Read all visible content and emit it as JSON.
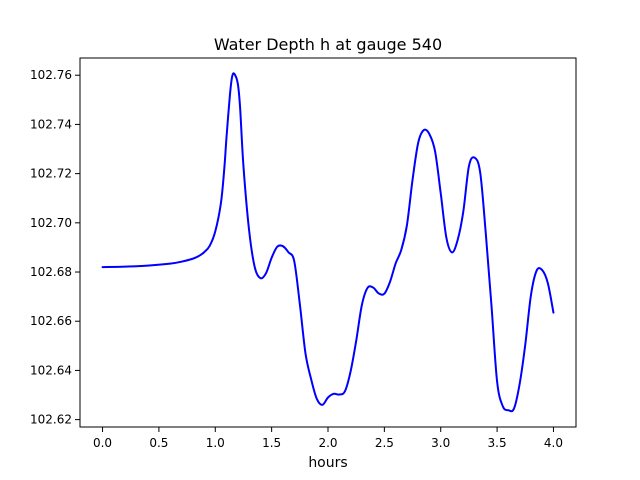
{
  "chart_data": {
    "type": "line",
    "title": "Water Depth h at gauge 540",
    "xlabel": "hours",
    "ylabel": "",
    "xlim": [
      -0.2,
      4.2
    ],
    "ylim": [
      102.617,
      102.767
    ],
    "xticks": [
      0.0,
      0.5,
      1.0,
      1.5,
      2.0,
      2.5,
      3.0,
      3.5,
      4.0
    ],
    "xtick_labels": [
      "0.0",
      "0.5",
      "1.0",
      "1.5",
      "2.0",
      "2.5",
      "3.0",
      "3.5",
      "4.0"
    ],
    "yticks": [
      102.62,
      102.64,
      102.66,
      102.68,
      102.7,
      102.72,
      102.74,
      102.76
    ],
    "ytick_labels": [
      "102.62",
      "102.64",
      "102.66",
      "102.68",
      "102.70",
      "102.72",
      "102.74",
      "102.76"
    ],
    "grid": false,
    "series": [
      {
        "color": "#0000ff",
        "x": [
          0.0,
          0.2,
          0.4,
          0.6,
          0.7,
          0.8,
          0.85,
          0.9,
          0.95,
          1.0,
          1.05,
          1.08,
          1.1,
          1.13,
          1.15,
          1.17,
          1.2,
          1.22,
          1.25,
          1.3,
          1.35,
          1.4,
          1.45,
          1.5,
          1.55,
          1.6,
          1.65,
          1.7,
          1.75,
          1.8,
          1.85,
          1.9,
          1.95,
          2.0,
          2.05,
          2.1,
          2.15,
          2.2,
          2.25,
          2.3,
          2.35,
          2.4,
          2.45,
          2.5,
          2.55,
          2.6,
          2.65,
          2.7,
          2.75,
          2.8,
          2.85,
          2.9,
          2.95,
          3.0,
          3.05,
          3.1,
          3.15,
          3.2,
          3.25,
          3.3,
          3.35,
          3.4,
          3.45,
          3.5,
          3.55,
          3.6,
          3.65,
          3.7,
          3.75,
          3.8,
          3.85,
          3.9,
          3.95,
          4.0
        ],
        "y": [
          102.682,
          102.6822,
          102.6826,
          102.6834,
          102.6842,
          102.6854,
          102.6864,
          102.688,
          102.6906,
          102.6965,
          102.708,
          102.722,
          102.735,
          102.752,
          102.7595,
          102.7605,
          102.7565,
          102.747,
          102.723,
          102.697,
          102.682,
          102.6775,
          102.6795,
          102.6858,
          102.6903,
          102.6905,
          102.688,
          102.6845,
          102.667,
          102.647,
          102.6365,
          102.6285,
          102.626,
          102.629,
          102.6305,
          102.6302,
          102.6315,
          102.6395,
          102.652,
          102.6665,
          102.6735,
          102.6737,
          102.6713,
          102.6712,
          102.676,
          102.6835,
          102.689,
          102.699,
          102.7175,
          102.7325,
          102.7377,
          102.736,
          102.729,
          102.712,
          102.694,
          102.688,
          102.693,
          102.7045,
          102.723,
          102.7265,
          102.7205,
          102.6955,
          102.6665,
          102.6355,
          102.6255,
          102.6238,
          102.6245,
          102.6345,
          102.6505,
          102.6705,
          102.6805,
          102.6808,
          102.6755,
          102.6635
        ]
      }
    ]
  }
}
